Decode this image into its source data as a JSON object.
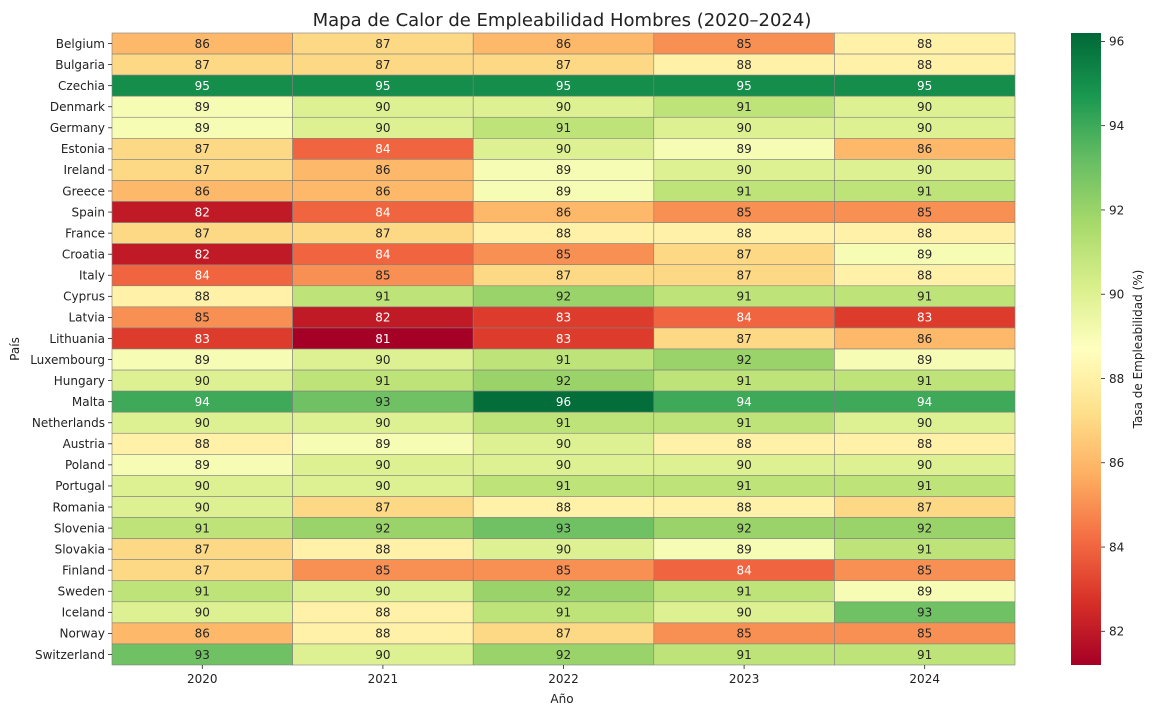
{
  "chart_data": {
    "type": "heatmap",
    "title": "Mapa de Calor de Empleabilidad Hombres (2020–2024)",
    "xlabel": "Año",
    "ylabel": "País",
    "colorbar_label": "Tasa de Empleabilidad (%)",
    "colormap": "RdYlGn",
    "vmin": 81.2,
    "vmax": 96.2,
    "colorbar_ticks": [
      82,
      84,
      86,
      88,
      90,
      92,
      94,
      96
    ],
    "x": [
      "2020",
      "2021",
      "2022",
      "2023",
      "2024"
    ],
    "y": [
      "Belgium",
      "Bulgaria",
      "Czechia",
      "Denmark",
      "Germany",
      "Estonia",
      "Ireland",
      "Greece",
      "Spain",
      "France",
      "Croatia",
      "Italy",
      "Cyprus",
      "Latvia",
      "Lithuania",
      "Luxembourg",
      "Hungary",
      "Malta",
      "Netherlands",
      "Austria",
      "Poland",
      "Portugal",
      "Romania",
      "Slovenia",
      "Slovakia",
      "Finland",
      "Sweden",
      "Iceland",
      "Norway",
      "Switzerland"
    ],
    "values": [
      [
        86,
        87,
        86,
        85,
        88
      ],
      [
        87,
        87,
        87,
        88,
        88
      ],
      [
        95,
        95,
        95,
        95,
        95
      ],
      [
        89,
        90,
        90,
        91,
        90
      ],
      [
        89,
        90,
        91,
        90,
        90
      ],
      [
        87,
        84,
        90,
        89,
        86
      ],
      [
        87,
        86,
        89,
        90,
        90
      ],
      [
        86,
        86,
        89,
        91,
        91
      ],
      [
        82,
        84,
        86,
        85,
        85
      ],
      [
        87,
        87,
        88,
        88,
        88
      ],
      [
        82,
        84,
        85,
        87,
        89
      ],
      [
        84,
        85,
        87,
        87,
        88
      ],
      [
        88,
        91,
        92,
        91,
        91
      ],
      [
        85,
        82,
        83,
        84,
        83
      ],
      [
        83,
        81,
        83,
        87,
        86
      ],
      [
        89,
        90,
        91,
        92,
        89
      ],
      [
        90,
        91,
        92,
        91,
        91
      ],
      [
        94,
        93,
        96,
        94,
        94
      ],
      [
        90,
        90,
        91,
        91,
        90
      ],
      [
        88,
        89,
        90,
        88,
        88
      ],
      [
        89,
        90,
        90,
        90,
        90
      ],
      [
        90,
        90,
        91,
        91,
        91
      ],
      [
        90,
        87,
        88,
        88,
        87
      ],
      [
        91,
        92,
        93,
        92,
        92
      ],
      [
        87,
        88,
        90,
        89,
        91
      ],
      [
        87,
        85,
        85,
        84,
        85
      ],
      [
        91,
        90,
        92,
        91,
        89
      ],
      [
        90,
        88,
        91,
        90,
        93
      ],
      [
        86,
        88,
        87,
        85,
        85
      ],
      [
        93,
        90,
        92,
        91,
        91
      ]
    ]
  }
}
